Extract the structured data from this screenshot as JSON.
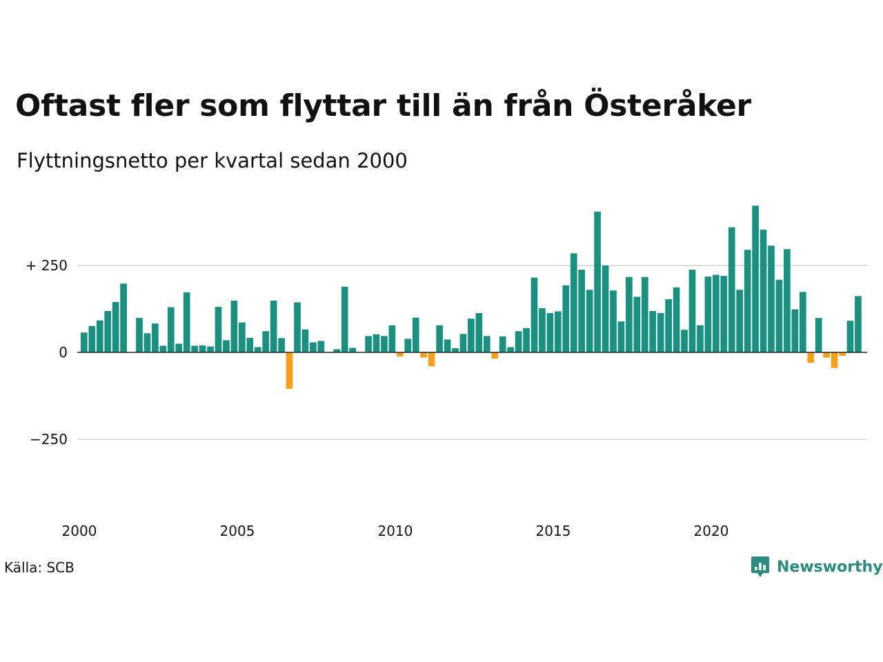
{
  "title": "Oftast fler som flyttar till än från Österåker",
  "subtitle": "Flyttningsnetto per kvartal sedan 2000",
  "source": "Källa: SCB",
  "brand": {
    "name": "Newsworthy",
    "color": "#2a8c7e",
    "icon": "newsworthy-chart-bubble-icon"
  },
  "colors": {
    "positive": "#1a9080",
    "negative": "#f5a11c",
    "grid": "#dddddd",
    "zero_line": "#222222"
  },
  "chart_data": {
    "type": "bar",
    "title": "Oftast fler som flyttar till än från Österåker",
    "subtitle": "Flyttningsnetto per kvartal sedan 2000",
    "xlabel": "",
    "ylabel": "",
    "x_start": 2000,
    "periods_per_year": 4,
    "x_ticks": [
      "2000",
      "2005",
      "2010",
      "2015",
      "2020"
    ],
    "y_ticks": [
      {
        "value": 250,
        "label": "+ 250"
      },
      {
        "value": 0,
        "label": "0"
      },
      {
        "value": -250,
        "label": "−250"
      }
    ],
    "ylim": [
      -430,
      430
    ],
    "grid": true,
    "legend": "none",
    "values": [
      57,
      76,
      92,
      119,
      145,
      198,
      0,
      99,
      55,
      83,
      19,
      130,
      25,
      173,
      19,
      20,
      17,
      131,
      35,
      149,
      86,
      42,
      15,
      61,
      149,
      41,
      -105,
      144,
      66,
      29,
      33,
      0,
      9,
      189,
      13,
      0,
      47,
      52,
      47,
      78,
      -12,
      39,
      100,
      -15,
      -40,
      78,
      37,
      12,
      53,
      97,
      113,
      47,
      -18,
      46,
      15,
      61,
      70,
      215,
      127,
      113,
      118,
      193,
      285,
      238,
      180,
      405,
      250,
      178,
      89,
      217,
      160,
      217,
      119,
      113,
      153,
      187,
      65,
      238,
      78,
      218,
      223,
      220,
      360,
      180,
      295,
      422,
      353,
      307,
      209,
      297,
      124,
      174,
      -30,
      99,
      -15,
      -45,
      -10,
      91,
      162
    ]
  }
}
